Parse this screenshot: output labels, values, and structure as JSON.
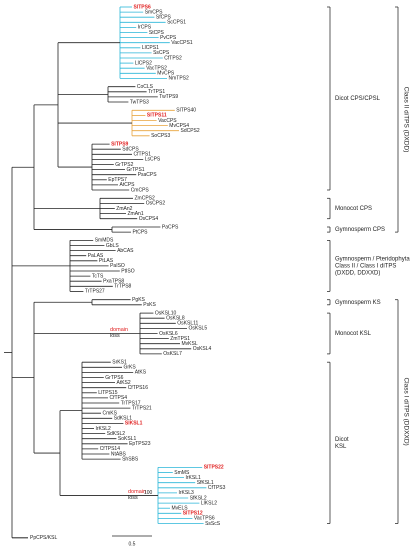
{
  "tree": {
    "clades": [
      {
        "color": "#29b6d8",
        "leaves": [
          {
            "name": "SlTPS6",
            "highlight": true
          },
          {
            "name": "SmCPS"
          },
          {
            "name": "SfCPS"
          },
          {
            "name": "ScCPS1"
          },
          {
            "name": "IrCPS"
          },
          {
            "name": "StCPS"
          },
          {
            "name": "PvCPS"
          },
          {
            "name": "VacCPS1"
          },
          {
            "name": "LlCPS1"
          },
          {
            "name": "SsCPS"
          },
          {
            "name": "CfTPS2"
          },
          {
            "name": "LlCPS2"
          },
          {
            "name": "VacTPS2"
          },
          {
            "name": "MvCPS"
          },
          {
            "name": "NmTPS2"
          }
        ]
      },
      {
        "color": "#222222",
        "leaves": [
          {
            "name": "CoCLS"
          },
          {
            "name": "TrTPS1"
          },
          {
            "name": "TwTPS9"
          },
          {
            "name": "TwTPS3"
          }
        ]
      },
      {
        "color": "#e8a33c",
        "leaves": [
          {
            "name": "SlTPS40"
          },
          {
            "name": "SlTPS11",
            "highlight": true
          },
          {
            "name": "VacCPS"
          },
          {
            "name": "MvCPS4"
          },
          {
            "name": "SdCPS2"
          },
          {
            "name": "SoCPS3"
          }
        ]
      },
      {
        "color": "#222222",
        "leaves": [
          {
            "name": "SlTPS9",
            "highlight": true
          },
          {
            "name": "SdCPS"
          },
          {
            "name": "CfTPS1"
          },
          {
            "name": "LsCPS"
          },
          {
            "name": "GrTPS2"
          },
          {
            "name": "GrTPS1"
          },
          {
            "name": "PsaCPS"
          },
          {
            "name": "EpTPS7"
          },
          {
            "name": "AtCPS"
          },
          {
            "name": "CmCPS"
          }
        ]
      },
      {
        "color": "#222222",
        "leaves": [
          {
            "name": "ZmCPS2"
          },
          {
            "name": "OsCPS2"
          },
          {
            "name": "ZmAn2"
          },
          {
            "name": "ZmAn1"
          },
          {
            "name": "OsCPS4"
          }
        ]
      },
      {
        "color": "#222222",
        "leaves": [
          {
            "name": "PaCPS"
          },
          {
            "name": "PtCPS"
          }
        ]
      },
      {
        "color": "#222222",
        "leaves": [
          {
            "name": "SmMDS"
          },
          {
            "name": "GbLS"
          },
          {
            "name": "AbCAS"
          },
          {
            "name": "PaLAS"
          },
          {
            "name": "PtLAS"
          },
          {
            "name": "PaISO"
          },
          {
            "name": "PtISO"
          },
          {
            "name": "TcTS"
          },
          {
            "name": "PxaTPS8"
          },
          {
            "name": "TrTPS8"
          },
          {
            "name": "TrTPS27"
          }
        ]
      },
      {
        "color": "#222222",
        "leaves": [
          {
            "name": "PgKS"
          },
          {
            "name": "PsKS"
          }
        ]
      },
      {
        "color": "#222222",
        "leaves": [
          {
            "name": "OsKSL10"
          },
          {
            "name": "OsKSL8"
          },
          {
            "name": "OsKSL11"
          },
          {
            "name": "OsKSL5"
          },
          {
            "name": "OsKSL6"
          },
          {
            "name": "ZmTPS1"
          },
          {
            "name": "MvKSL"
          },
          {
            "name": "OsKSL4"
          },
          {
            "name": "OsKSL7"
          }
        ]
      },
      {
        "color": "#222222",
        "leaves": [
          {
            "name": "SrKS1"
          },
          {
            "name": "GrKS"
          },
          {
            "name": "AtKS"
          },
          {
            "name": "GrTPS6"
          },
          {
            "name": "AtKS2"
          },
          {
            "name": "CfTPS16"
          },
          {
            "name": "LlTPS15"
          },
          {
            "name": "CfTPS4"
          },
          {
            "name": "TrTPS17"
          },
          {
            "name": "TrTPS21"
          },
          {
            "name": "CmKS"
          },
          {
            "name": "SdKSL1"
          },
          {
            "name": "SlKSL1",
            "highlight": true
          },
          {
            "name": "IrKSL2"
          },
          {
            "name": "SdKSL2"
          },
          {
            "name": "SoKSL1"
          },
          {
            "name": "EpTPS23"
          },
          {
            "name": "CfTPS14"
          },
          {
            "name": "NtABS"
          },
          {
            "name": "ShSBS"
          }
        ]
      },
      {
        "color": "#29b6d8",
        "leaves": [
          {
            "name": "SlTPS22",
            "highlight": true
          },
          {
            "name": "SmMS"
          },
          {
            "name": "IrKSL1"
          },
          {
            "name": "SfKSL1"
          },
          {
            "name": "CfTPS3"
          },
          {
            "name": "IrKSL3"
          },
          {
            "name": "SfKSL2"
          },
          {
            "name": "LlKSL2"
          },
          {
            "name": "MvELS"
          },
          {
            "name": "SlTPS12",
            "highlight": true
          },
          {
            "name": "VacTPS6"
          },
          {
            "name": "SsScS"
          }
        ]
      }
    ],
    "groups": [
      {
        "lines": [
          "Dicot CPS/CPSL"
        ],
        "clades": [
          0,
          1,
          2,
          3
        ]
      },
      {
        "lines": [
          "Monocot CPS"
        ],
        "clades": [
          4
        ]
      },
      {
        "lines": [
          "Gymnosperm CPS"
        ],
        "clades": [
          5
        ]
      },
      {
        "lines": [
          "Gymnosperm / Pteridophyta",
          "Class II / Class I diTPS",
          "(DXDD, DDXXD)"
        ],
        "clades": [
          6
        ]
      },
      {
        "lines": [
          "Gymnosperm KS"
        ],
        "clades": [
          7
        ]
      },
      {
        "lines": [
          "Monocot KSL"
        ],
        "clades": [
          8
        ]
      },
      {
        "lines": [
          "Dicot",
          "KSL"
        ],
        "clades": [
          9,
          10
        ]
      }
    ],
    "classes": [
      {
        "label": "Class II diTPS (DXDD)",
        "groups": [
          0,
          1,
          2
        ]
      },
      {
        "label": "Class I diTPS (DDXXD)",
        "groups": [
          4,
          5,
          6
        ]
      }
    ],
    "annotations": [
      {
        "lines": [
          "domain",
          "loss"
        ],
        "clade": 8
      },
      {
        "lines": [
          "domain",
          "loss"
        ],
        "clade": 10
      }
    ],
    "support": {
      "label": "100",
      "clade": 10
    },
    "root_leaf": "PpCPS/KSL",
    "scale_label": "0.5"
  }
}
